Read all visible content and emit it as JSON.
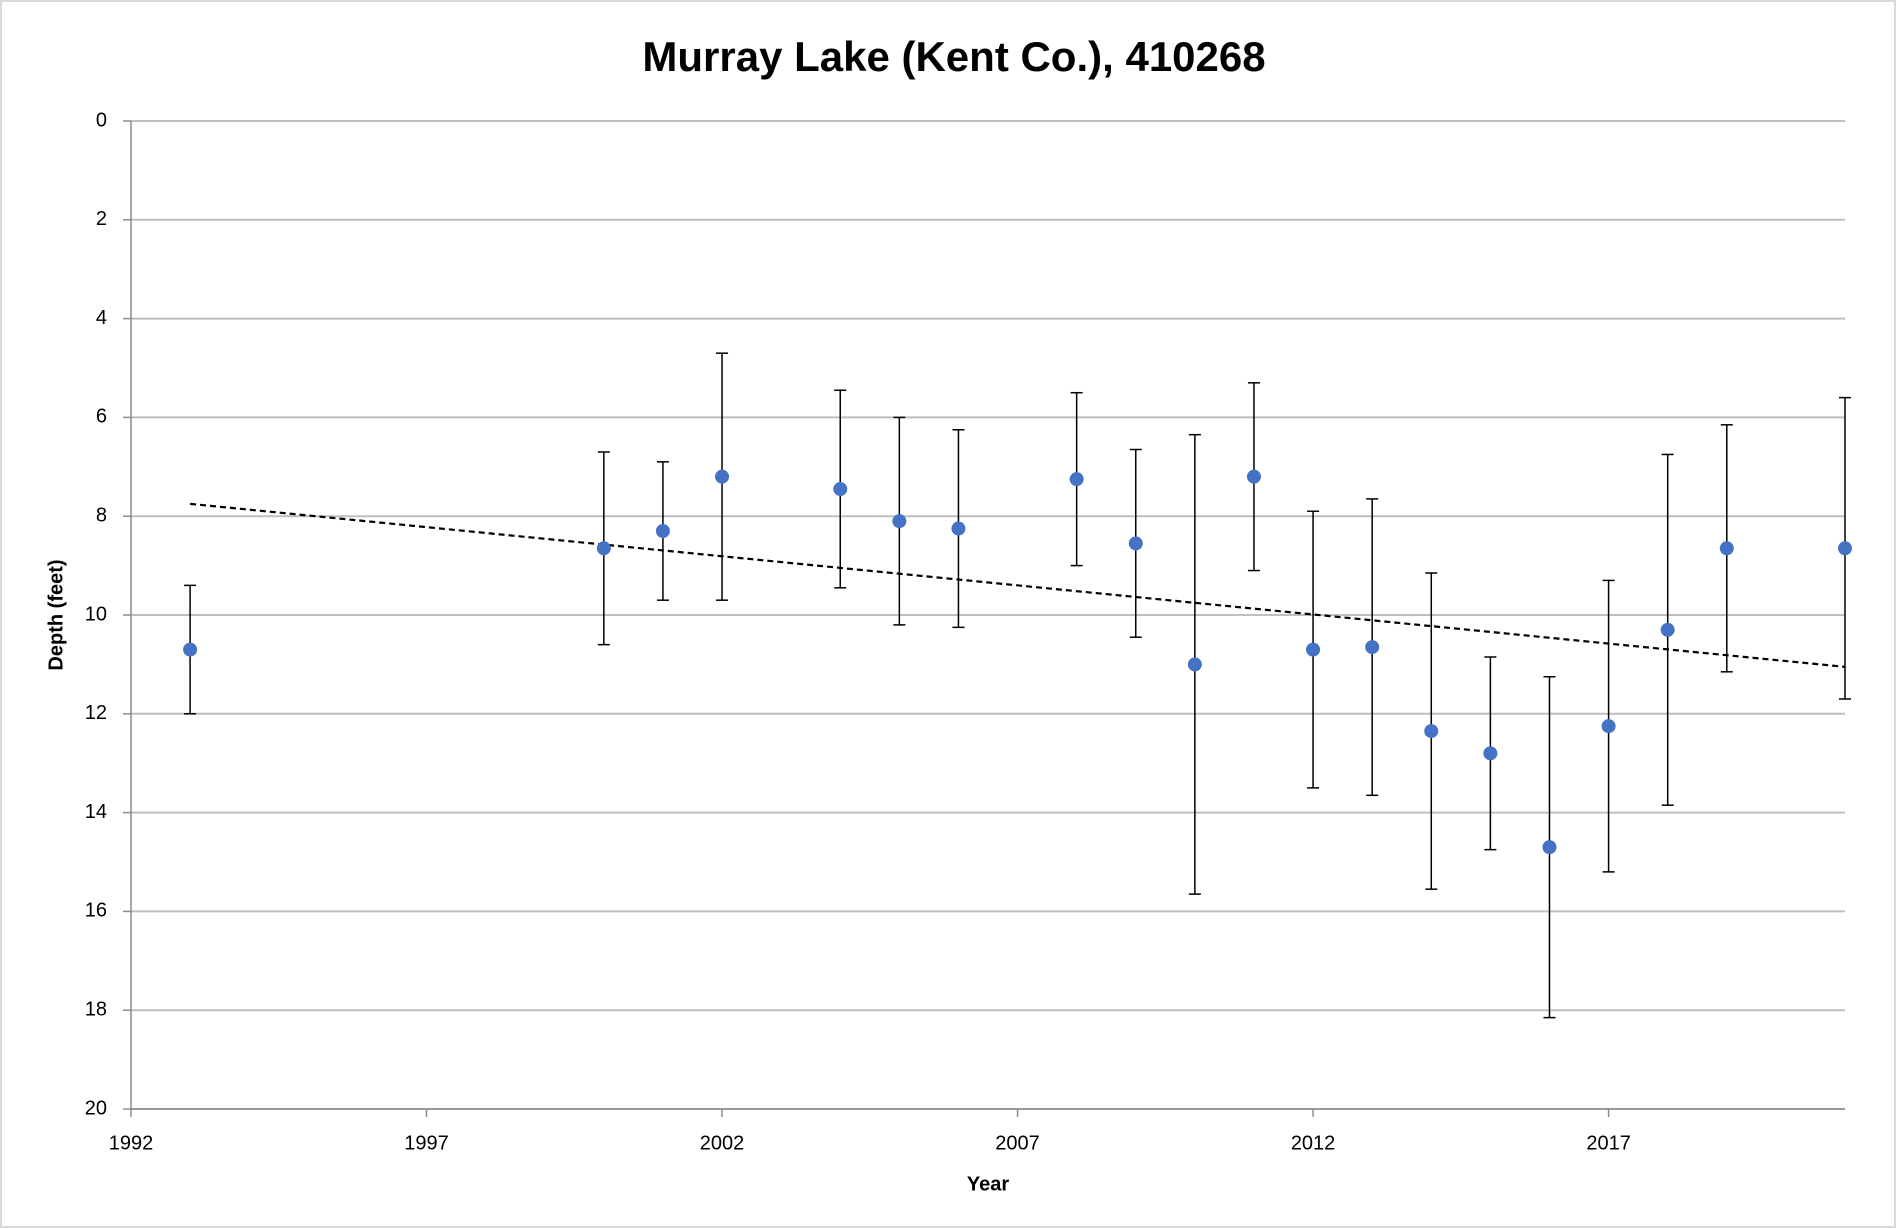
{
  "chart_data": {
    "type": "errorbar-scatter",
    "title": "Murray Lake (Kent Co.), 410268",
    "x_label": "Year",
    "y_label": "Depth (feet)",
    "x": [
      1993,
      2000,
      2001,
      2002,
      2004,
      2005,
      2006,
      2008,
      2009,
      2010,
      2011,
      2012,
      2013,
      2014,
      2015,
      2016,
      2017,
      2018,
      2019,
      2021
    ],
    "series": [
      {
        "color": "#4472c4",
        "values": [
          10.7,
          8.65,
          8.3,
          7.2,
          7.45,
          8.1,
          8.25,
          7.25,
          8.55,
          11.0,
          7.2,
          10.7,
          10.65,
          12.35,
          12.8,
          14.7,
          12.25,
          10.3,
          8.65,
          8.65
        ],
        "errors": [
          1.3,
          1.95,
          1.4,
          2.5,
          2.0,
          2.1,
          2.0,
          1.75,
          1.9,
          4.65,
          1.9,
          2.8,
          3.0,
          3.2,
          1.95,
          3.45,
          2.95,
          3.55,
          2.5,
          3.05
        ]
      }
    ],
    "trendline": {
      "x": [
        1993,
        2021
      ],
      "values": [
        7.75,
        11.05
      ],
      "color": "#000000",
      "dashed": true
    },
    "xlim": [
      1992,
      2021
    ],
    "xticks": [
      1992,
      1997,
      2002,
      2007,
      2012,
      2017
    ],
    "ylim": [
      0,
      20
    ],
    "yticks": [
      0,
      2,
      4,
      6,
      8,
      10,
      12,
      14,
      16,
      18,
      20
    ],
    "y_inverted": true,
    "grid": true
  }
}
